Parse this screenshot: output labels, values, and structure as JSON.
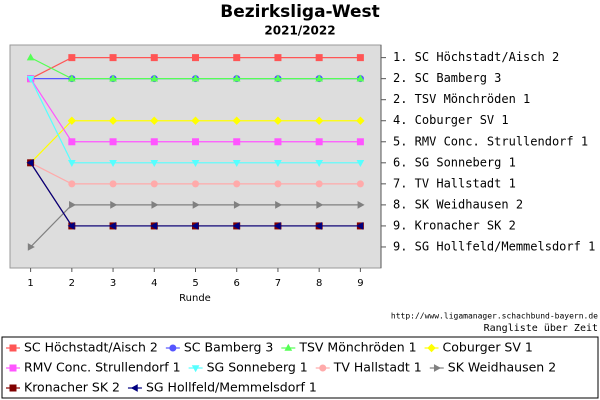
{
  "chart_data": {
    "type": "line",
    "title": "Bezirksliga-West",
    "subtitle": "2021/2022",
    "x_label": "Runde",
    "source": "http://www.ligamanager.schachbund-bayern.de",
    "caption": "Rangliste über Zeit",
    "x": [
      1,
      2,
      3,
      4,
      5,
      6,
      7,
      8,
      9
    ],
    "xlim": [
      0.5,
      9.5
    ],
    "xticks": [
      1,
      2,
      3,
      4,
      5,
      6,
      7,
      8,
      9
    ],
    "ylim": [
      11,
      0.4
    ],
    "y_inverted": true,
    "yticks": [
      {
        "value": 1,
        "label": "1. SC Höchstadt/Aisch 2"
      },
      {
        "value": 2,
        "label": "2. SC Bamberg 3"
      },
      {
        "value": 3,
        "label": "2. TSV Mönchröden 1"
      },
      {
        "value": 4,
        "label": "4. Coburger SV 1"
      },
      {
        "value": 5,
        "label": "5. RMV Conc. Strullendorf 1"
      },
      {
        "value": 6,
        "label": "6. SG Sonneberg 1"
      },
      {
        "value": 7,
        "label": "7. TV Hallstadt 1"
      },
      {
        "value": 8,
        "label": "8. SK Weidhausen 2"
      },
      {
        "value": 9,
        "label": "9. Kronacher SK 2"
      },
      {
        "value": 10,
        "label": "9. SG Hollfeld/Memmelsdorf 1"
      }
    ],
    "legend": "bottom",
    "series": [
      {
        "name": "SC Höchstadt/Aisch 2",
        "color": "#ff5555",
        "marker": "square",
        "values": [
          2,
          1,
          1,
          1,
          1,
          1,
          1,
          1,
          1
        ]
      },
      {
        "name": "SC Bamberg 3",
        "color": "#5555ff",
        "marker": "circle",
        "values": [
          2,
          2,
          2,
          2,
          2,
          2,
          2,
          2,
          2
        ]
      },
      {
        "name": "TSV Mönchröden 1",
        "color": "#55ff55",
        "marker": "triangle-up",
        "values": [
          1,
          2,
          2,
          2,
          2,
          2,
          2,
          2,
          2
        ]
      },
      {
        "name": "Coburger SV 1",
        "color": "#ffff00",
        "marker": "diamond",
        "values": [
          6,
          4,
          4,
          4,
          4,
          4,
          4,
          4,
          4
        ]
      },
      {
        "name": "RMV Conc. Strullendorf 1",
        "color": "#ff55ff",
        "marker": "square",
        "values": [
          2,
          5,
          5,
          5,
          5,
          5,
          5,
          5,
          5
        ]
      },
      {
        "name": "SG Sonneberg 1",
        "color": "#55ffff",
        "marker": "triangle-down",
        "values": [
          2,
          6,
          6,
          6,
          6,
          6,
          6,
          6,
          6
        ]
      },
      {
        "name": "TV Hallstadt 1",
        "color": "#ffaaaa",
        "marker": "circle",
        "values": [
          6,
          7,
          7,
          7,
          7,
          7,
          7,
          7,
          7
        ]
      },
      {
        "name": "SK Weidhausen 2",
        "color": "#808080",
        "marker": "triangle-right",
        "values": [
          10,
          8,
          8,
          8,
          8,
          8,
          8,
          8,
          8
        ]
      },
      {
        "name": "Kronacher SK 2",
        "color": "#800000",
        "marker": "square",
        "values": [
          6,
          9,
          9,
          9,
          9,
          9,
          9,
          9,
          9
        ]
      },
      {
        "name": "SG Hollfeld/Memmelsdorf 1",
        "color": "#000080",
        "marker": "triangle-left",
        "values": [
          6,
          9,
          9,
          9,
          9,
          9,
          9,
          9,
          9
        ]
      }
    ]
  }
}
